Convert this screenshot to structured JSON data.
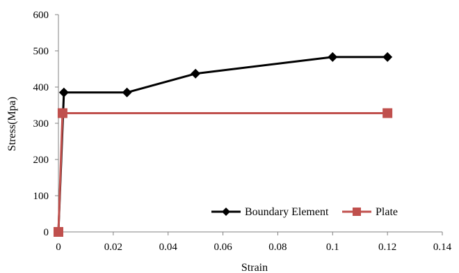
{
  "chart_data": {
    "type": "line",
    "title": "",
    "xlabel": "Strain",
    "ylabel": "Stress(Mpa)",
    "xlim": [
      0,
      0.14
    ],
    "ylim": [
      0,
      600
    ],
    "x_ticks": [
      0,
      0.02,
      0.04,
      0.06,
      0.08,
      0.1,
      0.12,
      0.14
    ],
    "y_ticks": [
      0,
      100,
      200,
      300,
      400,
      500,
      600
    ],
    "grid": false,
    "legend_position": "bottom-right",
    "series": [
      {
        "name": "Boundary Element",
        "color": "#000000",
        "marker": "diamond",
        "points": [
          {
            "x": 0,
            "y": 0
          },
          {
            "x": 0.002,
            "y": 385
          },
          {
            "x": 0.025,
            "y": 385
          },
          {
            "x": 0.05,
            "y": 437
          },
          {
            "x": 0.1,
            "y": 483
          },
          {
            "x": 0.12,
            "y": 483
          }
        ]
      },
      {
        "name": "Plate",
        "color": "#c0504d",
        "marker": "square",
        "points": [
          {
            "x": 0,
            "y": 0
          },
          {
            "x": 0.0015,
            "y": 328
          },
          {
            "x": 0.12,
            "y": 328
          }
        ]
      }
    ]
  }
}
